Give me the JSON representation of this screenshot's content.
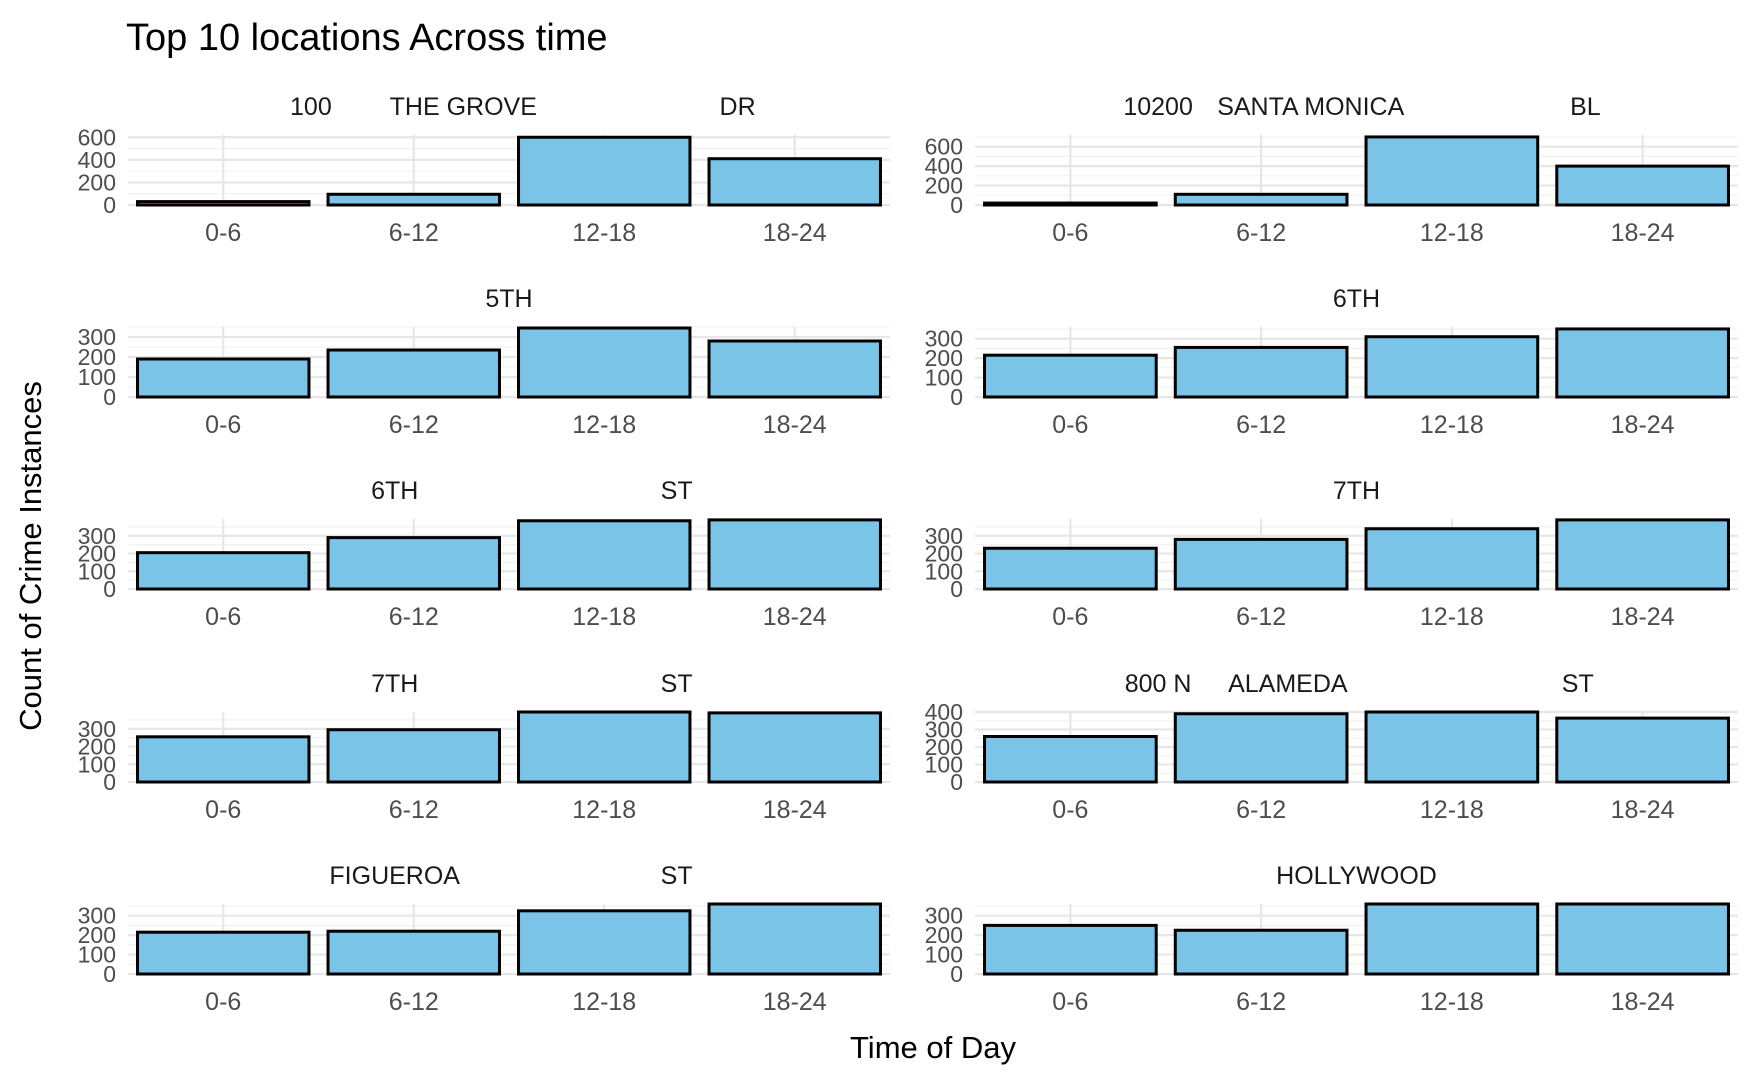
{
  "chart_data": {
    "type": "bar",
    "title": "Top 10 locations Across time",
    "xlabel": "Time of Day",
    "ylabel": "Count of Crime Instances",
    "categories": [
      "0-6",
      "6-12",
      "12-18",
      "18-24"
    ],
    "grid": true,
    "legend": "none",
    "colors": {
      "bar_fill": "#7ac4e7",
      "bar_stroke": "#000000",
      "grid": "#e6e6e6",
      "tick_text": "#4d4d4d"
    },
    "facets": [
      {
        "label_parts": [
          "100",
          "THE GROVE",
          "DR"
        ],
        "values": [
          30,
          95,
          600,
          410
        ],
        "ylim": [
          0,
          620
        ],
        "yticks": [
          0,
          200,
          400,
          600
        ]
      },
      {
        "label_parts": [
          "10200",
          "SANTA MONICA",
          "BL"
        ],
        "values": [
          20,
          110,
          700,
          400
        ],
        "ylim": [
          0,
          720
        ],
        "yticks": [
          0,
          200,
          400,
          600
        ]
      },
      {
        "label_parts": [
          "5TH"
        ],
        "values": [
          190,
          235,
          345,
          280
        ],
        "ylim": [
          0,
          350
        ],
        "yticks": [
          0,
          100,
          200,
          300
        ]
      },
      {
        "label_parts": [
          "6TH"
        ],
        "values": [
          215,
          255,
          310,
          350
        ],
        "ylim": [
          0,
          360
        ],
        "yticks": [
          0,
          100,
          200,
          300,
          400
        ]
      },
      {
        "label_parts": [
          "6TH",
          "ST"
        ],
        "values": [
          205,
          290,
          385,
          390
        ],
        "ylim": [
          0,
          395
        ],
        "yticks": [
          0,
          100,
          200,
          300,
          400
        ]
      },
      {
        "label_parts": [
          "7TH"
        ],
        "values": [
          230,
          280,
          340,
          390
        ],
        "ylim": [
          0,
          395
        ],
        "yticks": [
          0,
          100,
          200,
          300,
          400
        ]
      },
      {
        "label_parts": [
          "7TH",
          "ST"
        ],
        "values": [
          255,
          295,
          395,
          390
        ],
        "ylim": [
          0,
          395
        ],
        "yticks": [
          0,
          100,
          200,
          300,
          400
        ]
      },
      {
        "label_parts": [
          "800 N",
          "ALAMEDA",
          "ST"
        ],
        "values": [
          260,
          390,
          400,
          365
        ],
        "ylim": [
          0,
          400
        ],
        "yticks": [
          0,
          100,
          200,
          300,
          400
        ]
      },
      {
        "label_parts": [
          "FIGUEROA",
          "ST"
        ],
        "values": [
          215,
          220,
          325,
          360
        ],
        "ylim": [
          0,
          360
        ],
        "yticks": [
          0,
          100,
          200,
          300
        ]
      },
      {
        "label_parts": [
          "HOLLYWOOD"
        ],
        "values": [
          250,
          225,
          360,
          360
        ],
        "ylim": [
          0,
          360
        ],
        "yticks": [
          0,
          100,
          200,
          300
        ]
      }
    ]
  }
}
